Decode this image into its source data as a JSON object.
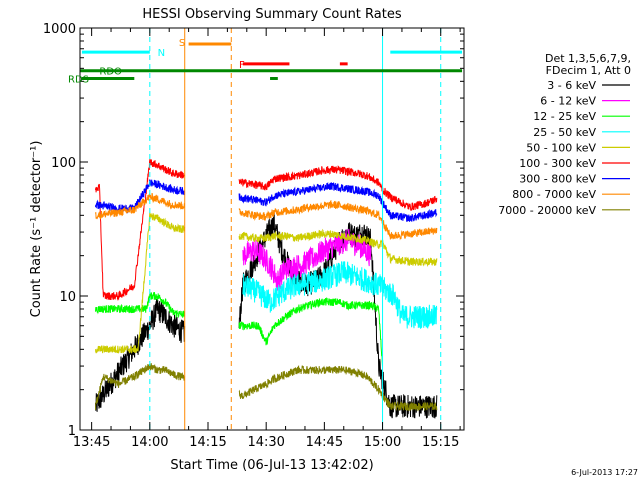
{
  "chart_data": {
    "type": "line",
    "title": "HESSI Observing Summary Count Rates",
    "xlabel": "Start Time (06-Jul-13 13:42:02)",
    "ylabel": "Count Rate (s⁻¹ detector⁻¹)",
    "yscale": "log",
    "ylim": [
      1,
      1000
    ],
    "xlim_minutes": [
      0,
      99
    ],
    "xticks": [
      {
        "label": "13:45",
        "t": 3
      },
      {
        "label": "14:00",
        "t": 18
      },
      {
        "label": "14:15",
        "t": 33
      },
      {
        "label": "14:30",
        "t": 48
      },
      {
        "label": "14:45",
        "t": 63
      },
      {
        "label": "15:00",
        "t": 78
      },
      {
        "label": "15:15",
        "t": 93
      }
    ],
    "yticks": [
      {
        "label": "1",
        "v": 1
      },
      {
        "label": "10",
        "v": 10
      },
      {
        "label": "100",
        "v": 100
      },
      {
        "label": "1000",
        "v": 1000
      }
    ],
    "legend_header": [
      "Det 1,3,5,6,7,9,",
      "FDecim 1, Att 0"
    ],
    "series": [
      {
        "name": "3 - 6 keV",
        "color": "#000000",
        "points": [
          [
            4,
            1.5
          ],
          [
            18,
            6
          ],
          [
            20,
            8
          ],
          [
            22,
            7
          ],
          [
            24,
            6
          ],
          [
            40,
            3
          ],
          [
            42,
            12
          ],
          [
            48,
            28
          ],
          [
            50,
            35
          ],
          [
            52,
            22
          ],
          [
            55,
            14
          ],
          [
            58,
            12
          ],
          [
            61,
            13
          ],
          [
            63,
            15
          ],
          [
            65,
            20
          ],
          [
            67,
            26
          ],
          [
            69,
            30
          ],
          [
            71,
            28
          ],
          [
            73,
            30
          ],
          [
            75,
            26
          ],
          [
            77,
            3
          ],
          [
            80,
            1.5
          ],
          [
            92,
            1.5
          ]
        ]
      },
      {
        "name": "6 - 12 keV",
        "color": "#ff00ff",
        "points": [
          [
            42,
            20
          ],
          [
            45,
            22
          ],
          [
            47,
            20
          ],
          [
            49,
            17
          ],
          [
            51,
            13
          ],
          [
            53,
            16
          ],
          [
            57,
            17
          ],
          [
            60,
            19
          ],
          [
            63,
            22
          ],
          [
            66,
            24
          ],
          [
            69,
            26
          ],
          [
            72,
            24
          ],
          [
            75,
            20
          ]
        ]
      },
      {
        "name": "12 - 25 keV",
        "color": "#00ff00",
        "points": [
          [
            4,
            8
          ],
          [
            17,
            8
          ],
          [
            18,
            10
          ],
          [
            20,
            10
          ],
          [
            22,
            9
          ],
          [
            24,
            7.5
          ],
          [
            42,
            6
          ],
          [
            46,
            6
          ],
          [
            48,
            4.5
          ],
          [
            50,
            6
          ],
          [
            53,
            7
          ],
          [
            56,
            8
          ],
          [
            59,
            8.5
          ],
          [
            62,
            9
          ],
          [
            65,
            9
          ],
          [
            67,
            9
          ],
          [
            69,
            8.5
          ],
          [
            72,
            8.5
          ],
          [
            75,
            8.5
          ],
          [
            77,
            8
          ],
          [
            78,
            3
          ]
        ]
      },
      {
        "name": "25 - 50 keV",
        "color": "#00ffff",
        "points": [
          [
            42,
            12
          ],
          [
            45,
            11
          ],
          [
            47,
            10
          ],
          [
            49,
            9
          ],
          [
            51,
            10
          ],
          [
            53,
            11
          ],
          [
            56,
            12
          ],
          [
            59,
            12.5
          ],
          [
            62,
            13
          ],
          [
            65,
            14
          ],
          [
            68,
            15
          ],
          [
            71,
            14
          ],
          [
            74,
            13
          ],
          [
            77,
            12
          ],
          [
            79,
            11
          ],
          [
            81,
            10
          ],
          [
            83,
            7
          ],
          [
            86,
            7
          ],
          [
            89,
            7
          ],
          [
            92,
            7
          ]
        ]
      },
      {
        "name": "50 - 100 keV",
        "color": "#cccc00",
        "points": [
          [
            4,
            4
          ],
          [
            8,
            4
          ],
          [
            12,
            4
          ],
          [
            15,
            4
          ],
          [
            18,
            40
          ],
          [
            20,
            38
          ],
          [
            22,
            35
          ],
          [
            24,
            32
          ],
          [
            42,
            28
          ],
          [
            45,
            27
          ],
          [
            48,
            27
          ],
          [
            50,
            28
          ],
          [
            53,
            28
          ],
          [
            56,
            27
          ],
          [
            59,
            28
          ],
          [
            62,
            29
          ],
          [
            65,
            29
          ],
          [
            68,
            28
          ],
          [
            71,
            27
          ],
          [
            74,
            26
          ],
          [
            77,
            24
          ],
          [
            78,
            25
          ],
          [
            80,
            19
          ],
          [
            85,
            18
          ],
          [
            89,
            18
          ],
          [
            92,
            18
          ]
        ]
      },
      {
        "name": "100 - 300 keV",
        "color": "#ff0000",
        "points": [
          [
            4,
            62
          ],
          [
            5,
            65
          ],
          [
            6,
            10
          ],
          [
            10,
            10
          ],
          [
            14,
            12
          ],
          [
            18,
            100
          ],
          [
            20,
            95
          ],
          [
            22,
            88
          ],
          [
            24,
            82
          ],
          [
            42,
            70
          ],
          [
            45,
            68
          ],
          [
            48,
            65
          ],
          [
            50,
            75
          ],
          [
            53,
            77
          ],
          [
            56,
            79
          ],
          [
            59,
            82
          ],
          [
            62,
            86
          ],
          [
            65,
            88
          ],
          [
            68,
            86
          ],
          [
            71,
            83
          ],
          [
            74,
            79
          ],
          [
            77,
            70
          ],
          [
            78,
            62
          ],
          [
            80,
            55
          ],
          [
            85,
            46
          ],
          [
            89,
            49
          ],
          [
            92,
            53
          ]
        ]
      },
      {
        "name": "300 - 800 keV",
        "color": "#0000ff",
        "points": [
          [
            4,
            48
          ],
          [
            10,
            45
          ],
          [
            14,
            45
          ],
          [
            18,
            70
          ],
          [
            20,
            68
          ],
          [
            22,
            65
          ],
          [
            24,
            62
          ],
          [
            42,
            54
          ],
          [
            45,
            52
          ],
          [
            48,
            50
          ],
          [
            50,
            56
          ],
          [
            53,
            58
          ],
          [
            56,
            60
          ],
          [
            59,
            62
          ],
          [
            62,
            64
          ],
          [
            65,
            66
          ],
          [
            68,
            64
          ],
          [
            71,
            62
          ],
          [
            74,
            60
          ],
          [
            77,
            56
          ],
          [
            78,
            50
          ],
          [
            80,
            40
          ],
          [
            85,
            38
          ],
          [
            89,
            40
          ],
          [
            92,
            42
          ]
        ]
      },
      {
        "name": "800 - 7000 keV",
        "color": "#ff8800",
        "points": [
          [
            4,
            40
          ],
          [
            10,
            42
          ],
          [
            14,
            44
          ],
          [
            18,
            55
          ],
          [
            20,
            53
          ],
          [
            22,
            50
          ],
          [
            24,
            48
          ],
          [
            42,
            42
          ],
          [
            45,
            40
          ],
          [
            48,
            39
          ],
          [
            50,
            42
          ],
          [
            53,
            43
          ],
          [
            56,
            44
          ],
          [
            59,
            46
          ],
          [
            62,
            47
          ],
          [
            65,
            48
          ],
          [
            68,
            47
          ],
          [
            71,
            45
          ],
          [
            74,
            43
          ],
          [
            77,
            40
          ],
          [
            78,
            36
          ],
          [
            80,
            28
          ],
          [
            85,
            29
          ],
          [
            89,
            30
          ],
          [
            92,
            31
          ]
        ]
      },
      {
        "name": "7000 - 20000 keV",
        "color": "#808000",
        "points": [
          [
            4,
            1.5
          ],
          [
            6,
            2.5
          ],
          [
            10,
            2.2
          ],
          [
            14,
            2.5
          ],
          [
            18,
            3
          ],
          [
            20,
            2.8
          ],
          [
            22,
            2.8
          ],
          [
            24,
            2.6
          ],
          [
            42,
            1.8
          ],
          [
            45,
            2
          ],
          [
            48,
            2.2
          ],
          [
            50,
            2.4
          ],
          [
            53,
            2.6
          ],
          [
            56,
            2.8
          ],
          [
            59,
            2.8
          ],
          [
            62,
            2.8
          ],
          [
            65,
            2.8
          ],
          [
            68,
            2.8
          ],
          [
            71,
            2.7
          ],
          [
            74,
            2.5
          ],
          [
            77,
            2
          ],
          [
            80,
            1.5
          ],
          [
            85,
            1.5
          ],
          [
            89,
            1.5
          ],
          [
            92,
            1.5
          ]
        ]
      }
    ],
    "flags": [
      {
        "label": "N",
        "color": "#00ffff",
        "y_level": 660,
        "segments": [
          [
            0.5,
            18
          ],
          [
            80,
            98.5
          ]
        ]
      },
      {
        "label": "S",
        "color": "#ff8800",
        "y_level": 760,
        "segments": [
          [
            28,
            39
          ]
        ]
      },
      {
        "label": "F",
        "color": "#ff0000",
        "y_level": 540,
        "segments": [
          [
            42,
            54
          ],
          [
            67,
            69
          ]
        ]
      },
      {
        "label": "RDO",
        "color": "#008800",
        "y_level": 480,
        "segments": [
          [
            0,
            98.5
          ]
        ]
      },
      {
        "label": "RDS",
        "color": "#008800",
        "y_level": 420,
        "segments": [
          [
            0.5,
            14
          ],
          [
            49,
            51
          ]
        ]
      }
    ],
    "vlines": [
      {
        "t": 18,
        "color": "#00ffff",
        "dashed": true
      },
      {
        "t": 27,
        "color": "#ff8800",
        "dashed": false
      },
      {
        "t": 39,
        "color": "#ff8800",
        "dashed": true
      },
      {
        "t": 78,
        "color": "#00ffff",
        "dashed": false
      },
      {
        "t": 93,
        "color": "#00ffff",
        "dashed": true
      }
    ],
    "gap": [
      27,
      41
    ],
    "footer_date": "6-Jul-2013 17:27"
  }
}
